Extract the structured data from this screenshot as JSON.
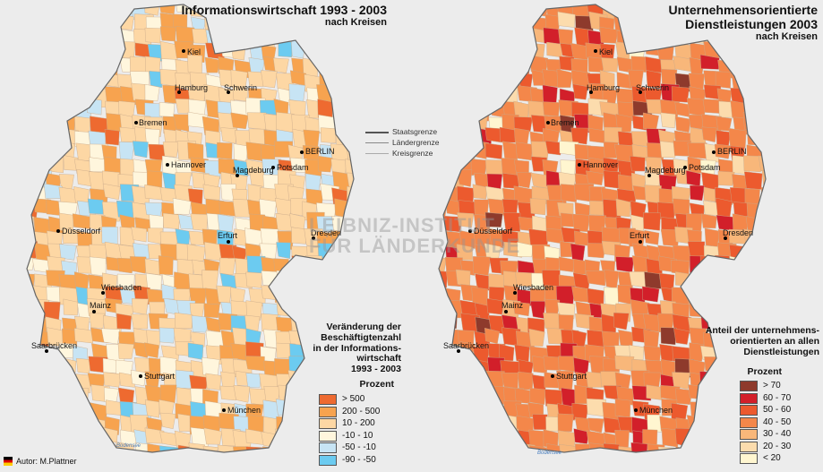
{
  "left_map": {
    "title": "Informationswirtschaft 1993 - 2003",
    "subtitle": "nach Kreisen",
    "legend_title": "Veränderung der\nBeschäftigtenzahl\nin der Informations-\nwirtschaft\n1993 - 2003",
    "legend_unit": "Prozent",
    "legend_items": [
      {
        "range": ">   500",
        "color": "#ee6a30"
      },
      {
        "range": "200   -   500",
        "color": "#f7a34f"
      },
      {
        "range": "10   -   200",
        "color": "#fdd7a4"
      },
      {
        "range": "-10   -   10",
        "color": "#fff6dd"
      },
      {
        "range": "-50   -   -10",
        "color": "#c7e4f4"
      },
      {
        "range": "-90   -   -50",
        "color": "#6ccbf0"
      }
    ],
    "cities": [
      "Kiel",
      "Hamburg",
      "Schwerin",
      "Bremen",
      "BERLIN",
      "Potsdam",
      "Hannover",
      "Magdeburg",
      "Düsseldorf",
      "Dresden",
      "Erfurt",
      "Wiesbaden",
      "Mainz",
      "Saarbrücken",
      "Stuttgart",
      "München"
    ]
  },
  "right_map": {
    "title_line1": "Unternehmensorientierte",
    "title_line2": "Dienstleistungen 2003",
    "subtitle": "nach Kreisen",
    "legend_title": "Anteil der unternehmens-\norientierten an allen\nDienstleistungen",
    "legend_unit": "Prozent",
    "legend_items": [
      {
        "range": ">   70",
        "color": "#8e3a2c"
      },
      {
        "range": "60   -   70",
        "color": "#d21f2a"
      },
      {
        "range": "50   -   60",
        "color": "#ec5a2e"
      },
      {
        "range": "40   -   50",
        "color": "#f4874a"
      },
      {
        "range": "30   -   40",
        "color": "#f8b77a"
      },
      {
        "range": "20   -   30",
        "color": "#fcdcad"
      },
      {
        "range": "<   20",
        "color": "#fff6d0"
      }
    ],
    "cities": [
      "Kiel",
      "Hamburg",
      "Schwerin",
      "Bremen",
      "BERLIN",
      "Potsdam",
      "Hannover",
      "Magdeburg",
      "Düsseldorf",
      "Dresden",
      "Erfurt",
      "Wiesbaden",
      "Mainz",
      "Saarbrücken",
      "Stuttgart",
      "München"
    ]
  },
  "border_legend": [
    "Staatsgrenze",
    "Ländergrenze",
    "Kreisgrenze"
  ],
  "watermark": [
    "LEIBNIZ-INSTITUT",
    "FÜR LÄNDERKUNDE"
  ],
  "author": "Autor:  M.Plattner",
  "lake_label": "Bodensee"
}
